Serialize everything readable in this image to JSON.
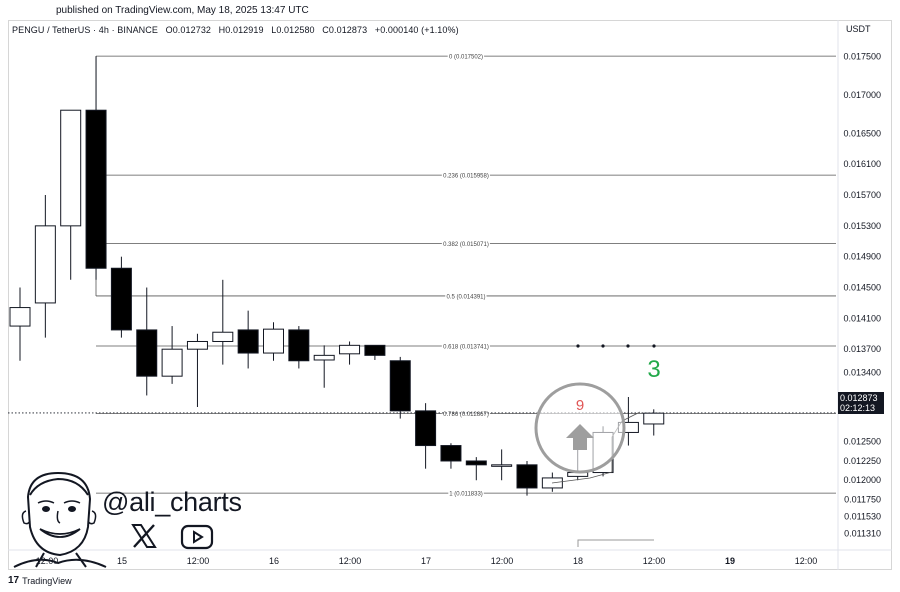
{
  "header": {
    "published": "published on TradingView.com, May 18, 2025 13:47 UTC"
  },
  "legend": {
    "pair": "PENGU / TetherUS · 4h · BINANCE",
    "open": "O0.012732",
    "high": "H0.012919",
    "low": "L0.012580",
    "close": "C0.012873",
    "change": "+0.000140 (+1.10%)"
  },
  "currency": "USDT",
  "price_tag": {
    "price": "0.012873",
    "countdown": "02:12:13"
  },
  "branding": {
    "handle": "@ali_charts",
    "footer": "TradingView",
    "footer_mark": "17"
  },
  "icons": [
    "x-logo-icon",
    "youtube-icon",
    "tradingview-logo-icon",
    "up-arrow-icon"
  ],
  "colors": {
    "bull_fill": "#ffffff",
    "bear_fill": "#000000",
    "signal_green": "#22a94a",
    "signal_red": "#e05656",
    "circle": "#9e9e9e"
  },
  "chart_data": {
    "type": "candlestick",
    "y_axis": {
      "ticks": [
        "0.017500",
        "0.017000",
        "0.016500",
        "0.016100",
        "0.015700",
        "0.015300",
        "0.014900",
        "0.014500",
        "0.014100",
        "0.013700",
        "0.013400",
        "0.013100",
        "0.012500",
        "0.012250",
        "0.012000",
        "0.011750",
        "0.011530",
        "0.011310"
      ],
      "range": [
        0.01116,
        0.01762
      ]
    },
    "x_axis": {
      "ticks": [
        "12:00",
        "15",
        "12:00",
        "16",
        "12:00",
        "17",
        "12:00",
        "18",
        "12:00",
        "19",
        "12:00"
      ]
    },
    "candles": [
      {
        "o": 0.014,
        "h": 0.0145,
        "l": 0.01355,
        "c": 0.01424
      },
      {
        "o": 0.0143,
        "h": 0.0157,
        "l": 0.01385,
        "c": 0.0153
      },
      {
        "o": 0.0153,
        "h": 0.0168,
        "l": 0.0146,
        "c": 0.0168
      },
      {
        "o": 0.0168,
        "h": 0.0175,
        "l": 0.0146,
        "c": 0.01475
      },
      {
        "o": 0.01475,
        "h": 0.0149,
        "l": 0.01385,
        "c": 0.01395
      },
      {
        "o": 0.01395,
        "h": 0.0145,
        "l": 0.0131,
        "c": 0.01335
      },
      {
        "o": 0.01335,
        "h": 0.014,
        "l": 0.01325,
        "c": 0.0137
      },
      {
        "o": 0.0137,
        "h": 0.0139,
        "l": 0.01295,
        "c": 0.0138
      },
      {
        "o": 0.0138,
        "h": 0.0146,
        "l": 0.0135,
        "c": 0.01392
      },
      {
        "o": 0.01395,
        "h": 0.0142,
        "l": 0.01345,
        "c": 0.01365
      },
      {
        "o": 0.01365,
        "h": 0.01405,
        "l": 0.01355,
        "c": 0.01396
      },
      {
        "o": 0.01395,
        "h": 0.014,
        "l": 0.01345,
        "c": 0.01355
      },
      {
        "o": 0.01356,
        "h": 0.01375,
        "l": 0.0132,
        "c": 0.01362
      },
      {
        "o": 0.01364,
        "h": 0.0138,
        "l": 0.0135,
        "c": 0.01375
      },
      {
        "o": 0.01375,
        "h": 0.01375,
        "l": 0.01356,
        "c": 0.01362
      },
      {
        "o": 0.01355,
        "h": 0.0136,
        "l": 0.0128,
        "c": 0.0129
      },
      {
        "o": 0.0129,
        "h": 0.013,
        "l": 0.01215,
        "c": 0.01245
      },
      {
        "o": 0.01245,
        "h": 0.01248,
        "l": 0.01215,
        "c": 0.01225
      },
      {
        "o": 0.01225,
        "h": 0.0123,
        "l": 0.012,
        "c": 0.0122
      },
      {
        "o": 0.0122,
        "h": 0.0124,
        "l": 0.012,
        "c": 0.0122
      },
      {
        "o": 0.0122,
        "h": 0.01225,
        "l": 0.0118,
        "c": 0.0119
      },
      {
        "o": 0.0119,
        "h": 0.0121,
        "l": 0.01185,
        "c": 0.01203
      },
      {
        "o": 0.01205,
        "h": 0.0126,
        "l": 0.012,
        "c": 0.0121
      },
      {
        "o": 0.0121,
        "h": 0.0127,
        "l": 0.01205,
        "c": 0.01262
      },
      {
        "o": 0.01262,
        "h": 0.01308,
        "l": 0.01245,
        "c": 0.01275
      },
      {
        "o": 0.01273,
        "h": 0.01292,
        "l": 0.01258,
        "c": 0.01287
      }
    ],
    "fib_levels": [
      {
        "ratio": "0",
        "price": 0.017502,
        "label": "0 (0.017502)"
      },
      {
        "ratio": "0.236",
        "price": 0.015958,
        "label": "0.236 (0.015958)"
      },
      {
        "ratio": "0.382",
        "price": 0.015071,
        "label": "0.382 (0.015071)"
      },
      {
        "ratio": "0.5",
        "price": 0.014391,
        "label": "0.5 (0.014391)"
      },
      {
        "ratio": "0.618",
        "price": 0.013741,
        "label": "0.618 (0.013741)"
      },
      {
        "ratio": "0.786",
        "price": 0.012867,
        "label": "0.786 (0.012867)"
      },
      {
        "ratio": "1",
        "price": 0.011833,
        "label": "1 (0.011833)"
      }
    ],
    "current_price": 0.012873,
    "signals": [
      {
        "label": "9",
        "color": "#e05656",
        "candle": 22
      },
      {
        "label": "3",
        "color": "#22a94a",
        "candle": 25
      }
    ]
  }
}
